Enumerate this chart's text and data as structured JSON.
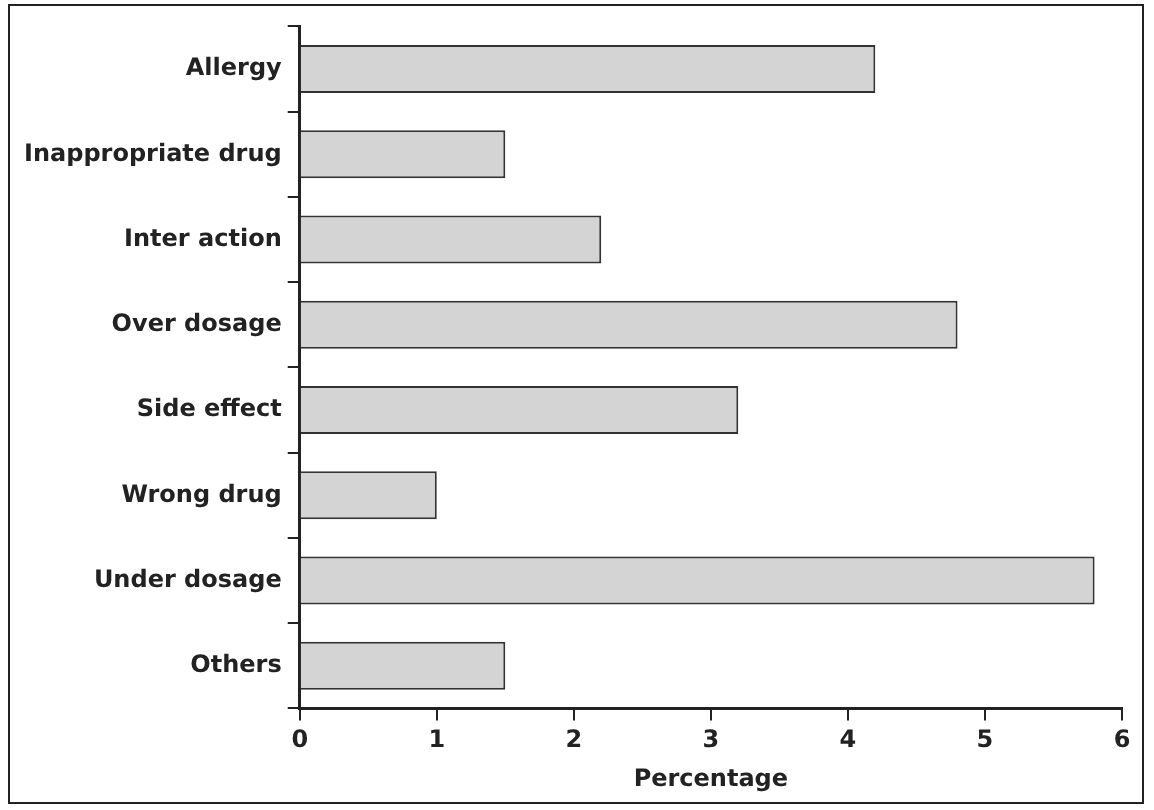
{
  "chart_data": {
    "type": "bar",
    "orientation": "horizontal",
    "xlabel": "Percentage",
    "categories": [
      "Allergy",
      "Inappropriate drug",
      "Inter action",
      "Over dosage",
      "Side effect",
      "Wrong drug",
      "Under dosage",
      "Others"
    ],
    "values": [
      4.2,
      1.5,
      2.2,
      4.8,
      3.2,
      1.0,
      5.8,
      1.5
    ],
    "color": "#d4d4d4",
    "xlim": [
      0,
      6
    ],
    "xticks": [
      0,
      1,
      2,
      3,
      4,
      5,
      6
    ],
    "grid": false,
    "legend": false
  }
}
